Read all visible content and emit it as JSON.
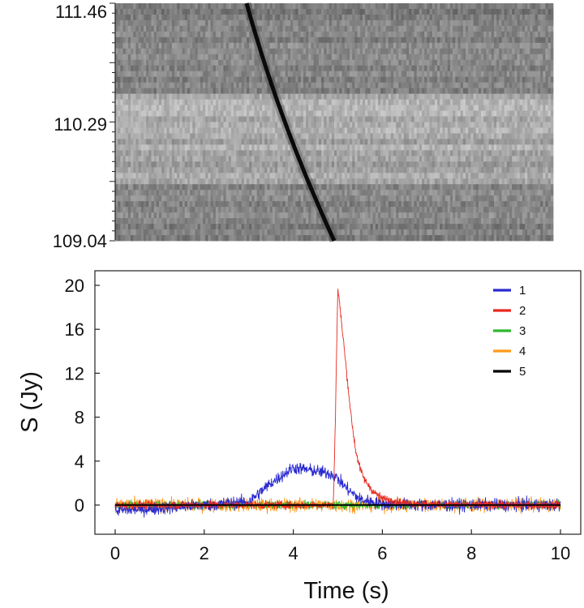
{
  "chart_data": [
    {
      "type": "heatmap",
      "description": "dynamic spectrum",
      "y_ticks": [
        "111.46",
        "110.29",
        "109.04"
      ],
      "y_tick_values": [
        111.46,
        110.29,
        109.04
      ],
      "time_range": [
        0,
        10
      ],
      "pulse_start_time": 3.0,
      "pulse_end_time": 5.0,
      "colormap": "grayscale, dark = high"
    },
    {
      "type": "line",
      "xlabel": "Time (s)",
      "ylabel": "S (Jy)",
      "xlim": [
        0,
        10
      ],
      "ylim": [
        -2,
        21
      ],
      "x_ticks": [
        0,
        2,
        4,
        6,
        8,
        10
      ],
      "y_ticks": [
        0,
        4,
        8,
        12,
        16,
        20
      ],
      "grid": false,
      "legend_position": "top-right",
      "series": [
        {
          "name": "1",
          "color": "#2a2ad0",
          "x": [
            0,
            1,
            2,
            3,
            3.5,
            4,
            4.5,
            4.9,
            5.2,
            5.5,
            6,
            7,
            8,
            9,
            10
          ],
          "y": [
            -0.5,
            -0.3,
            0,
            0.3,
            2.0,
            3.4,
            3.1,
            2.8,
            1.5,
            0.5,
            0.1,
            0,
            0,
            0,
            0
          ]
        },
        {
          "name": "2",
          "color": "#e8281e",
          "x": [
            0,
            1,
            2,
            3,
            4,
            4.5,
            4.9,
            4.95,
            5.0,
            5.1,
            5.2,
            5.3,
            5.4,
            5.5,
            5.6,
            5.8,
            6,
            6.5,
            7,
            8,
            9,
            10
          ],
          "y": [
            0,
            0,
            0,
            0,
            0,
            0,
            0,
            9,
            19.8,
            16.0,
            12.0,
            8.0,
            5.0,
            3.3,
            2.3,
            1.2,
            0.6,
            0.2,
            0.1,
            0,
            0,
            0
          ]
        },
        {
          "name": "3",
          "color": "#2db82d",
          "x": [
            0,
            10
          ],
          "y": [
            0,
            0
          ]
        },
        {
          "name": "4",
          "color": "#ff9a1a",
          "x": [
            0,
            10
          ],
          "y": [
            0,
            0
          ]
        },
        {
          "name": "5",
          "color": "#000000",
          "x": [
            0,
            10
          ],
          "y": [
            0,
            0
          ]
        }
      ]
    }
  ]
}
